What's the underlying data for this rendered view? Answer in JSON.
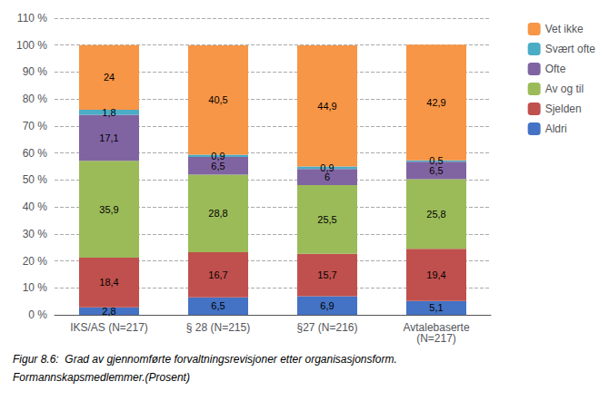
{
  "chart_data": {
    "type": "bar",
    "stacked": true,
    "data_labels": true,
    "grid": true,
    "legend": "upper right",
    "categories": [
      "IKS/AS (N=217)",
      "§ 28 (N=215)",
      "§27 (N=216)",
      "Avtalebaserte\n(N=217)"
    ],
    "series": [
      {
        "name": "Aldri",
        "color": "#4472C4",
        "values": [
          2.8,
          6.5,
          6.9,
          5.1
        ],
        "value_labels": [
          "2,8",
          "6,5",
          "6,9",
          "5,1"
        ]
      },
      {
        "name": "Sjelden",
        "color": "#C0504D",
        "values": [
          18.4,
          16.7,
          15.7,
          19.4
        ],
        "value_labels": [
          "18,4",
          "16,7",
          "15,7",
          "19,4"
        ]
      },
      {
        "name": "Av og til",
        "color": "#9BBB59",
        "values": [
          35.9,
          28.8,
          25.5,
          25.8
        ],
        "value_labels": [
          "35,9",
          "28,8",
          "25,5",
          "25,8"
        ]
      },
      {
        "name": "Ofte",
        "color": "#8064A2",
        "values": [
          17.1,
          6.5,
          6.0,
          6.5
        ],
        "value_labels": [
          "17,1",
          "6,5",
          "6",
          "6,5"
        ]
      },
      {
        "name": "Svært ofte",
        "color": "#4BACC6",
        "values": [
          1.8,
          0.9,
          0.9,
          0.5
        ],
        "value_labels": [
          "1,8",
          "0,9",
          "0,9",
          "0,5"
        ]
      },
      {
        "name": "Vet ikke",
        "color": "#F79646",
        "values": [
          24.0,
          40.5,
          44.9,
          42.9
        ],
        "value_labels": [
          "24",
          "40,5",
          "44,9",
          "42,9"
        ]
      }
    ],
    "ylim": [
      0,
      110
    ],
    "yticks": [
      {
        "value": 0,
        "label": "0 %"
      },
      {
        "value": 10,
        "label": "10 %"
      },
      {
        "value": 20,
        "label": "20 %"
      },
      {
        "value": 30,
        "label": "30 %"
      },
      {
        "value": 40,
        "label": "40 %"
      },
      {
        "value": 50,
        "label": "50 %"
      },
      {
        "value": 60,
        "label": "60 %"
      },
      {
        "value": 70,
        "label": "70 %"
      },
      {
        "value": 80,
        "label": "80 %"
      },
      {
        "value": 90,
        "label": "90 %"
      },
      {
        "value": 100,
        "label": "100 %"
      },
      {
        "value": 110,
        "label": "110 %"
      }
    ],
    "annotations": [
      "Figur 8.6:  Grad av gjennomførte forvaltningsrevisjoner etter organisasjonsform.",
      "Formannskapsmedlemmer.(Prosent)"
    ]
  }
}
